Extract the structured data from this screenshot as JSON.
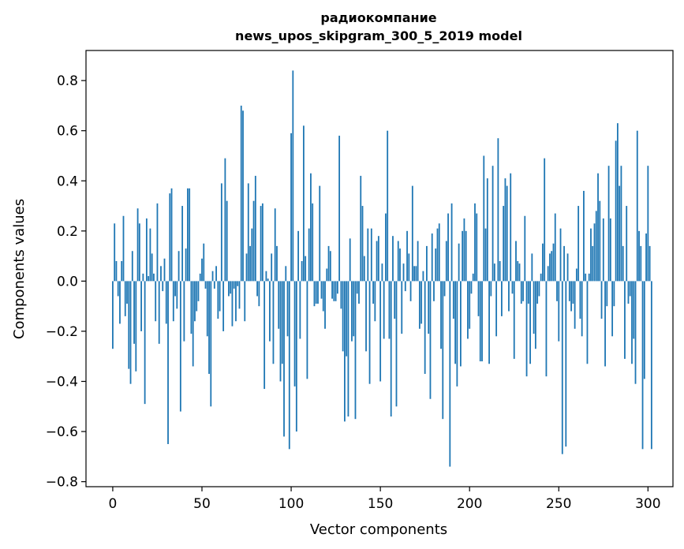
{
  "chart_data": {
    "type": "bar",
    "title_line1": "радиокомпание",
    "title_line2": "news_upos_skipgram_300_5_2019 model",
    "xlabel": "Vector components",
    "ylabel": "Components values",
    "xlim": [
      -15,
      314
    ],
    "ylim": [
      -0.82,
      0.92
    ],
    "x_ticks": [
      0,
      50,
      100,
      150,
      200,
      250,
      300
    ],
    "x_tick_labels": [
      "0",
      "50",
      "100",
      "150",
      "200",
      "250",
      "300"
    ],
    "y_ticks": [
      -0.8,
      -0.6,
      -0.4,
      -0.2,
      0.0,
      0.2,
      0.4,
      0.6,
      0.8
    ],
    "y_tick_labels": [
      "−0.8",
      "−0.6",
      "−0.4",
      "−0.2",
      "0.0",
      "0.2",
      "0.4",
      "0.6",
      "0.8"
    ],
    "bar_color": "#1f77b4",
    "values": [
      -0.27,
      0.23,
      0.08,
      -0.06,
      -0.17,
      0.08,
      0.26,
      -0.14,
      -0.09,
      -0.35,
      -0.41,
      0.12,
      -0.25,
      -0.36,
      0.29,
      0.23,
      -0.2,
      0.03,
      -0.49,
      0.25,
      0.02,
      0.21,
      0.11,
      0.03,
      -0.16,
      0.31,
      -0.25,
      0.06,
      -0.04,
      0.09,
      -0.17,
      -0.65,
      0.35,
      0.37,
      -0.16,
      -0.06,
      -0.11,
      0.12,
      -0.52,
      0.3,
      -0.24,
      0.13,
      0.37,
      0.37,
      -0.21,
      -0.34,
      -0.16,
      -0.12,
      -0.08,
      0.03,
      0.09,
      0.15,
      -0.03,
      -0.22,
      -0.37,
      -0.5,
      0.04,
      -0.03,
      0.06,
      -0.15,
      -0.12,
      0.39,
      -0.2,
      0.49,
      0.32,
      -0.06,
      -0.05,
      -0.18,
      -0.03,
      -0.16,
      -0.02,
      -0.11,
      0.7,
      0.68,
      -0.16,
      0.11,
      0.39,
      0.14,
      0.21,
      0.32,
      0.42,
      -0.06,
      -0.1,
      0.3,
      0.31,
      -0.43,
      0.04,
      0.01,
      -0.24,
      0.11,
      -0.33,
      0.29,
      0.14,
      -0.19,
      -0.4,
      -0.33,
      -0.62,
      0.06,
      -0.22,
      -0.67,
      0.59,
      0.84,
      -0.42,
      -0.6,
      0.2,
      -0.23,
      0.08,
      0.62,
      0.1,
      -0.39,
      0.21,
      0.43,
      0.31,
      -0.1,
      -0.09,
      -0.09,
      0.38,
      -0.07,
      -0.12,
      -0.19,
      0.05,
      0.14,
      0.12,
      -0.07,
      -0.08,
      -0.08,
      -0.05,
      0.58,
      -0.11,
      -0.28,
      -0.56,
      -0.3,
      -0.54,
      0.17,
      -0.24,
      -0.22,
      -0.55,
      -0.05,
      -0.09,
      0.42,
      0.3,
      0.1,
      -0.28,
      0.21,
      -0.41,
      0.21,
      -0.09,
      -0.16,
      0.16,
      0.18,
      -0.4,
      0.07,
      -0.23,
      0.27,
      0.6,
      -0.23,
      -0.54,
      0.18,
      -0.15,
      -0.5,
      0.16,
      0.13,
      -0.21,
      0.07,
      -0.04,
      0.2,
      0.11,
      -0.08,
      0.38,
      0.06,
      0.06,
      0.16,
      -0.19,
      -0.17,
      0.04,
      -0.37,
      0.14,
      -0.21,
      -0.47,
      0.19,
      -0.08,
      0.13,
      0.21,
      0.23,
      -0.27,
      -0.55,
      -0.06,
      0.16,
      0.27,
      -0.74,
      0.31,
      -0.15,
      -0.33,
      -0.42,
      0.15,
      -0.34,
      0.2,
      0.25,
      0.2,
      -0.23,
      -0.19,
      -0.05,
      0.03,
      0.31,
      0.27,
      -0.14,
      -0.32,
      -0.32,
      0.5,
      0.21,
      0.41,
      -0.33,
      -0.06,
      0.46,
      0.07,
      -0.22,
      0.57,
      0.08,
      -0.14,
      0.3,
      0.41,
      0.38,
      -0.12,
      0.43,
      -0.05,
      -0.31,
      0.16,
      0.08,
      0.07,
      -0.09,
      -0.08,
      0.26,
      -0.38,
      -0.09,
      -0.33,
      0.11,
      -0.21,
      -0.27,
      -0.09,
      -0.06,
      0.03,
      0.15,
      0.49,
      -0.38,
      0.06,
      0.11,
      0.12,
      0.15,
      0.27,
      -0.08,
      -0.24,
      0.21,
      -0.69,
      0.14,
      -0.66,
      0.11,
      -0.08,
      -0.12,
      -0.09,
      -0.19,
      0.05,
      0.3,
      -0.15,
      -0.22,
      0.36,
      0.03,
      -0.33,
      0.03,
      0.21,
      0.14,
      0.23,
      0.28,
      0.43,
      0.32,
      -0.15,
      0.25,
      -0.34,
      -0.1,
      0.46,
      0.25,
      -0.22,
      -0.1,
      0.56,
      0.63,
      0.38,
      0.46,
      0.14,
      -0.31,
      0.3,
      -0.09,
      -0.06,
      -0.33,
      -0.23,
      -0.41,
      0.6,
      0.2,
      0.14,
      -0.67,
      -0.39,
      0.19,
      0.46,
      0.14,
      -0.67
    ]
  }
}
